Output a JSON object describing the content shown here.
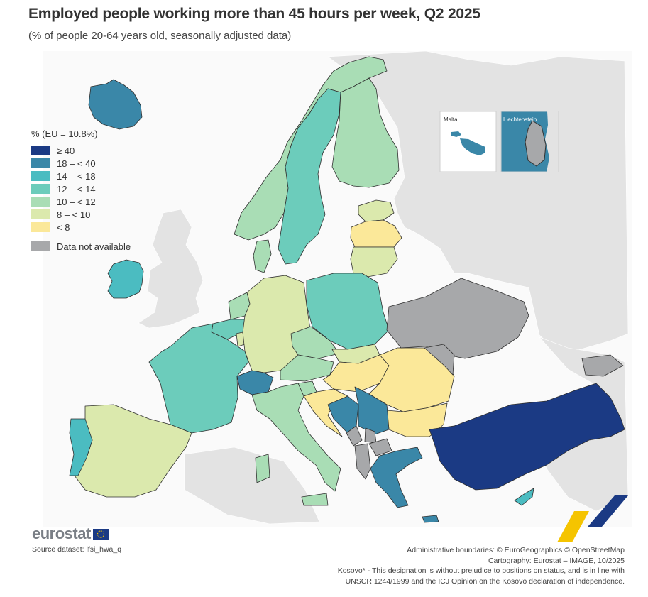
{
  "title": "Employed people working more than 45 hours per week, Q2 2025",
  "subtitle": "(% of people 20-64 years old, seasonally adjusted data)",
  "legend": {
    "title": "% (EU = 10.8%)",
    "classes": [
      {
        "label": "≥ 40",
        "color": "#1b3a84"
      },
      {
        "label": "18 – < 40",
        "color": "#3a87a8"
      },
      {
        "label": "14 – < 18",
        "color": "#4bbcc1"
      },
      {
        "label": "12 – < 14",
        "color": "#6cccbb"
      },
      {
        "label": "10 – < 12",
        "color": "#a9ddb5"
      },
      {
        "label": "8 – < 10",
        "color": "#dbe9ad"
      },
      {
        "label": "< 8",
        "color": "#fbe899"
      }
    ],
    "na_label": "Data not available",
    "na_color": "#a7a8aa",
    "nondata_color": "#e3e3e3"
  },
  "insets": {
    "malta": "Malta",
    "liechtenstein": "Liechtenstein"
  },
  "logo": "eurostat",
  "source": "Source dataset: lfsi_hwa_q",
  "credits": [
    "Administrative boundaries: © EuroGeographics © OpenStreetMap",
    "Cartography: Eurostat – IMAGE, 10/2025",
    "Kosovo* - This designation is without prejudice to positions on status, and is in line with",
    "UNSCR 1244/1999 and the ICJ Opinion on the Kosovo declaration of independence."
  ],
  "map_data": [
    {
      "region": "Iceland",
      "class": "18 – < 40"
    },
    {
      "region": "Ireland",
      "class": "14 – < 18"
    },
    {
      "region": "Portugal",
      "class": "14 – < 18"
    },
    {
      "region": "Spain",
      "class": "8 – < 10"
    },
    {
      "region": "France",
      "class": "12 – < 14"
    },
    {
      "region": "Switzerland",
      "class": "18 – < 40"
    },
    {
      "region": "Belgium",
      "class": "12 – < 14"
    },
    {
      "region": "Netherlands",
      "class": "10 – < 12"
    },
    {
      "region": "Luxembourg",
      "class": "8 – < 10"
    },
    {
      "region": "Germany",
      "class": "8 – < 10"
    },
    {
      "region": "Denmark",
      "class": "10 – < 12"
    },
    {
      "region": "Norway",
      "class": "10 – < 12"
    },
    {
      "region": "Sweden",
      "class": "12 – < 14"
    },
    {
      "region": "Finland",
      "class": "10 – < 12"
    },
    {
      "region": "Estonia",
      "class": "8 – < 10"
    },
    {
      "region": "Latvia",
      "class": "< 8"
    },
    {
      "region": "Lithuania",
      "class": "8 – < 10"
    },
    {
      "region": "Poland",
      "class": "12 – < 14"
    },
    {
      "region": "Czechia",
      "class": "10 – < 12"
    },
    {
      "region": "Slovakia",
      "class": "8 – < 10"
    },
    {
      "region": "Austria",
      "class": "10 – < 12"
    },
    {
      "region": "Slovenia",
      "class": "10 – < 12"
    },
    {
      "region": "Hungary",
      "class": "< 8"
    },
    {
      "region": "Croatia",
      "class": "< 8"
    },
    {
      "region": "Italy",
      "class": "10 – < 12"
    },
    {
      "region": "Malta",
      "class": "18 – < 40"
    },
    {
      "region": "Romania",
      "class": "< 8"
    },
    {
      "region": "Bulgaria",
      "class": "< 8"
    },
    {
      "region": "Bosnia and Herzegovina",
      "class": "18 – < 40"
    },
    {
      "region": "Serbia",
      "class": "18 – < 40"
    },
    {
      "region": "Greece",
      "class": "18 – < 40"
    },
    {
      "region": "Cyprus",
      "class": "14 – < 18"
    },
    {
      "region": "Türkiye",
      "class": "≥ 40"
    },
    {
      "region": "Montenegro",
      "class": "Data not available"
    },
    {
      "region": "Kosovo*",
      "class": "Data not available"
    },
    {
      "region": "North Macedonia",
      "class": "Data not available"
    },
    {
      "region": "Albania",
      "class": "Data not available"
    },
    {
      "region": "Ukraine",
      "class": "Data not available"
    },
    {
      "region": "Moldova",
      "class": "Data not available"
    },
    {
      "region": "Georgia",
      "class": "Data not available"
    },
    {
      "region": "Liechtenstein",
      "class": "Data not available"
    }
  ]
}
